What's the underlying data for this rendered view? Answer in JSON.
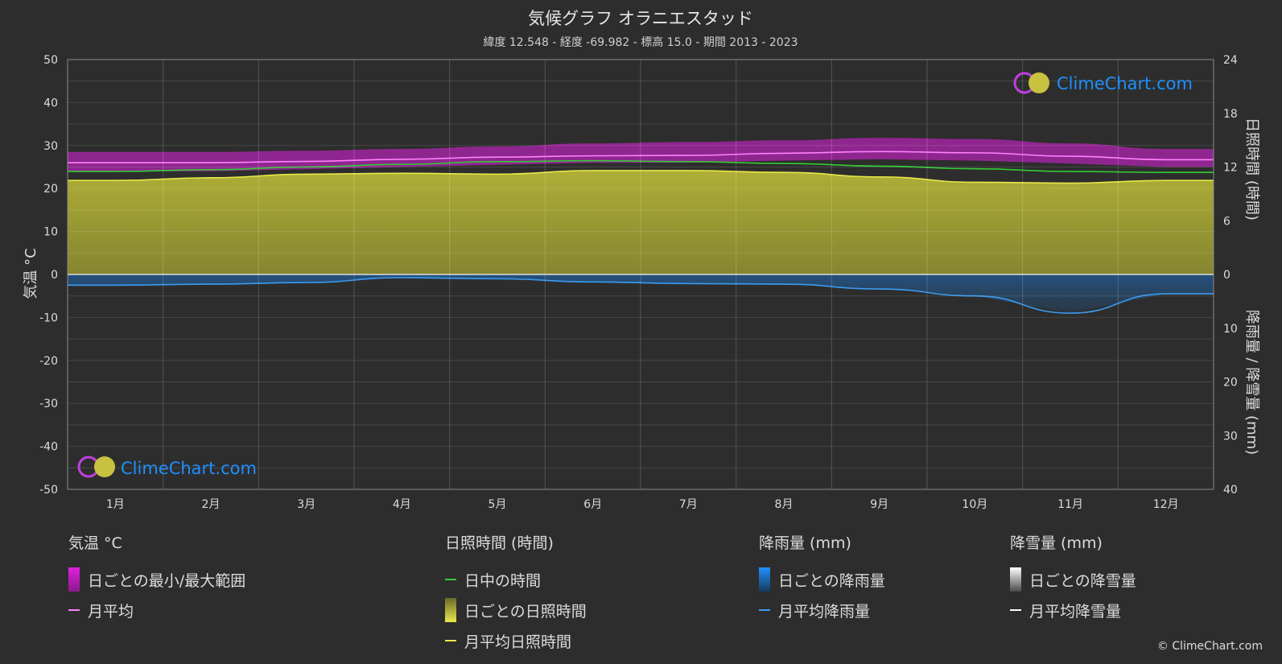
{
  "header": {
    "title": "気候グラフ オラニエスタッド",
    "subtitle": "緯度 12.548 - 経度 -69.982 - 標高 15.0 - 期間 2013 - 2023"
  },
  "watermark": {
    "text": "ClimeChart.com"
  },
  "copyright": "© ClimeChart.com",
  "colors": {
    "background": "#2d2d2d",
    "temp_range": "#e020e0",
    "temp_avg": "#ff80ff",
    "daylight": "#33cc33",
    "sunshine_fill": "#b5b538",
    "sunshine_avg": "#e8e84a",
    "rain": "#1e78d2",
    "rain_avg": "#3a9bf0",
    "snow_avg": "#ffffff",
    "brand": "#1e90ff"
  },
  "chart_data": {
    "type": "line",
    "categories": [
      "1月",
      "2月",
      "3月",
      "4月",
      "5月",
      "6月",
      "7月",
      "8月",
      "9月",
      "10月",
      "11月",
      "12月"
    ],
    "y_left": {
      "label": "気温 °C",
      "lim": [
        -50,
        50
      ],
      "ticks": [
        "50",
        "40",
        "30",
        "20",
        "10",
        "0",
        "-10",
        "-20",
        "-30",
        "-40",
        "-50"
      ]
    },
    "y_right_top": {
      "label": "日照時間 (時間)",
      "lim": [
        0,
        24
      ],
      "ticks": [
        "24",
        "18",
        "12",
        "6",
        "0"
      ]
    },
    "y_right_bottom": {
      "label": "降雨量 / 降雪量 (mm)",
      "lim": [
        0,
        40
      ],
      "ticks": [
        "0",
        "10",
        "20",
        "30",
        "40"
      ]
    },
    "grid": true,
    "series": [
      {
        "name": "月平均",
        "axis": "temp",
        "values": [
          26.0,
          26.0,
          26.3,
          26.8,
          27.3,
          27.6,
          27.7,
          28.2,
          28.6,
          28.3,
          27.5,
          26.7
        ]
      },
      {
        "name": "日中の時間",
        "axis": "sun",
        "values": [
          11.5,
          11.7,
          12.0,
          12.3,
          12.6,
          12.7,
          12.6,
          12.4,
          12.1,
          11.8,
          11.5,
          11.4
        ]
      },
      {
        "name": "月平均日照時間",
        "axis": "sun",
        "values": [
          10.5,
          10.8,
          11.2,
          11.3,
          11.2,
          11.6,
          11.6,
          11.4,
          10.9,
          10.3,
          10.2,
          10.5
        ]
      },
      {
        "name": "月平均降雨量",
        "axis": "rain",
        "values": [
          2.0,
          1.8,
          1.5,
          0.6,
          0.8,
          1.4,
          1.7,
          1.8,
          2.7,
          4.0,
          7.2,
          3.6
        ]
      },
      {
        "name": "月平均降雪量",
        "axis": "rain",
        "values": [
          0,
          0,
          0,
          0,
          0,
          0,
          0,
          0,
          0,
          0,
          0,
          0
        ]
      }
    ],
    "temp_daily_range": {
      "min": [
        24.0,
        24.0,
        24.5,
        25.0,
        25.5,
        26.0,
        26.0,
        26.5,
        26.8,
        26.5,
        25.8,
        25.0
      ],
      "max": [
        28.5,
        28.5,
        28.8,
        29.2,
        29.8,
        30.5,
        30.8,
        31.2,
        31.8,
        31.5,
        30.5,
        29.2
      ]
    }
  },
  "legend": {
    "temp": {
      "head": "気温 °C",
      "items": [
        "日ごとの最小/最大範囲",
        "月平均"
      ]
    },
    "sun": {
      "head": "日照時間 (時間)",
      "items": [
        "日中の時間",
        "日ごとの日照時間",
        "月平均日照時間"
      ]
    },
    "rain": {
      "head": "降雨量 (mm)",
      "items": [
        "日ごとの降雨量",
        "月平均降雨量"
      ]
    },
    "snow": {
      "head": "降雪量 (mm)",
      "items": [
        "日ごとの降雪量",
        "月平均降雪量"
      ]
    }
  }
}
